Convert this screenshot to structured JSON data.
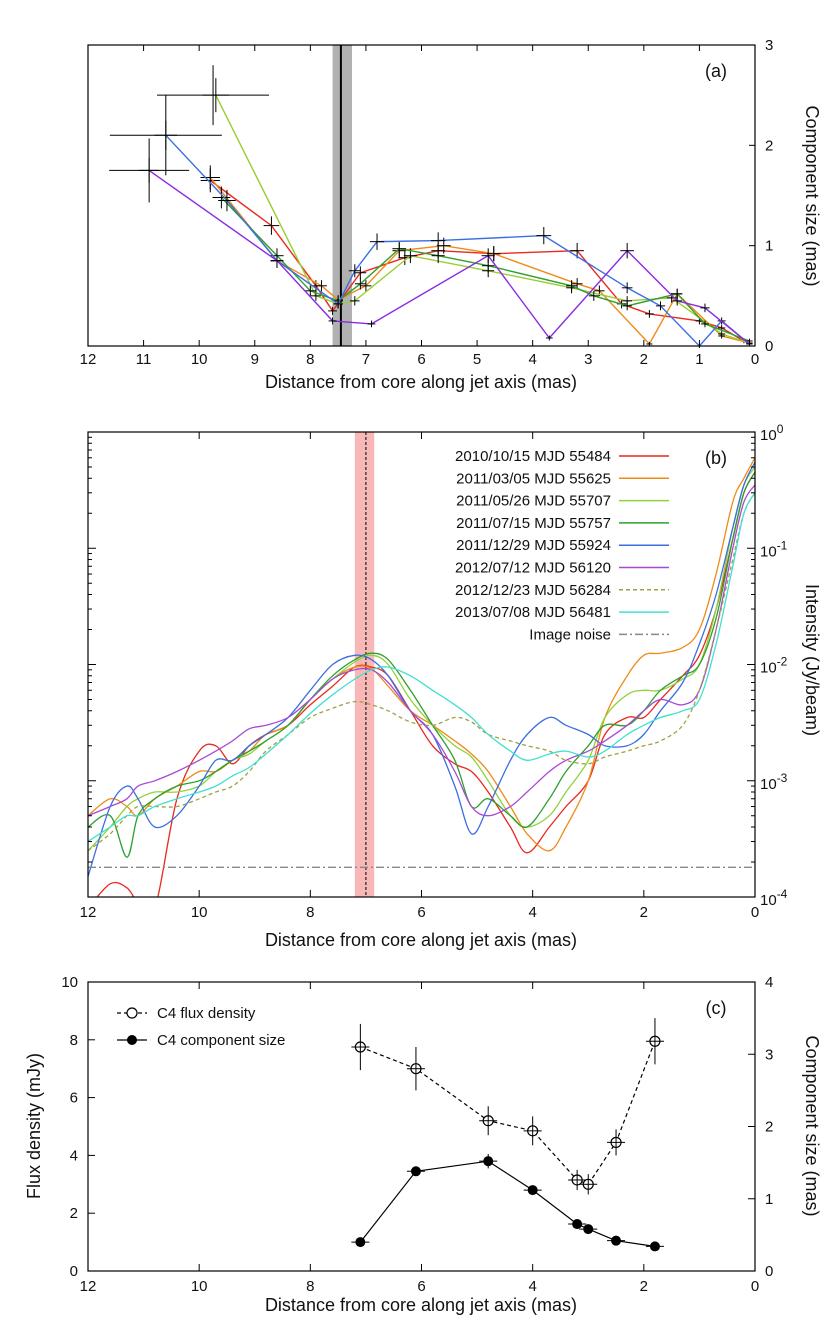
{
  "chart_data": [
    {
      "panel": "(a)",
      "type": "line",
      "xlabel": "Distance from core along jet axis (mas)",
      "ylabel": "Component size (mas)",
      "xlim": [
        12,
        0
      ],
      "ylim": [
        0,
        3
      ],
      "x_ticks": [
        12,
        11,
        10,
        9,
        8,
        7,
        6,
        5,
        4,
        3,
        2,
        1,
        0
      ],
      "y_ticks": [
        0,
        1,
        2,
        3
      ],
      "shaded_band": {
        "x_from": 7.6,
        "x_to": 7.25,
        "center_line": 7.45,
        "color": "#a9a9a9"
      },
      "series": [
        {
          "name": "2010/10/15",
          "color": "#e8291c",
          "x": [
            9.8,
            8.7,
            7.9,
            7.6,
            7.1,
            6.3,
            5.7,
            4.7,
            3.2,
            2.4,
            1.9,
            1.0,
            0.6,
            0.2
          ],
          "y": [
            1.65,
            1.2,
            0.6,
            0.35,
            0.73,
            0.88,
            0.95,
            0.92,
            0.95,
            0.42,
            0.32,
            0.25,
            0.18,
            0.05
          ]
        },
        {
          "name": "2011/03/05",
          "color": "#f08a18",
          "x": [
            9.8,
            8.6,
            7.8,
            7.5,
            7.0,
            6.4,
            5.6,
            4.7,
            3.2,
            2.8,
            1.9,
            1.4,
            0.6,
            0.1
          ],
          "y": [
            1.68,
            0.85,
            0.6,
            0.46,
            0.6,
            0.95,
            1.0,
            0.92,
            0.62,
            0.55,
            0.02,
            0.52,
            0.1,
            0.03
          ]
        },
        {
          "name": "2011/05/26",
          "color": "#9acd32",
          "x": [
            9.7,
            7.9,
            7.5,
            7.2,
            6.2,
            4.8,
            3.3,
            2.3,
            1.5,
            0.6,
            0.1
          ],
          "y": [
            2.5,
            0.5,
            0.42,
            0.45,
            0.9,
            0.75,
            0.58,
            0.45,
            0.48,
            0.12,
            0.03
          ]
        },
        {
          "name": "2011/07/15",
          "color": "#2ea02e",
          "x": [
            9.6,
            8.6,
            8.0,
            7.5,
            7.1,
            6.4,
            5.7,
            4.8,
            3.3,
            2.9,
            2.3,
            1.4,
            0.9,
            0.1
          ],
          "y": [
            1.48,
            0.9,
            0.55,
            0.45,
            0.62,
            0.97,
            0.9,
            0.8,
            0.6,
            0.5,
            0.4,
            0.52,
            0.22,
            0.05
          ]
        },
        {
          "name": "2011/12/29",
          "color": "#3b6fe0",
          "x": [
            10.6,
            9.5,
            8.6,
            7.5,
            7.2,
            6.8,
            5.7,
            3.8,
            2.3,
            1.7,
            1.0,
            0.6,
            0.1
          ],
          "y": [
            2.1,
            1.45,
            0.85,
            0.42,
            0.75,
            1.04,
            1.05,
            1.1,
            0.58,
            0.4,
            0.0,
            0.25,
            0.02
          ]
        },
        {
          "name": "2012/07/12",
          "color": "#8a2be2",
          "x": [
            10.9,
            8.6,
            7.6,
            6.9,
            4.8,
            3.7,
            2.3,
            1.4,
            0.9,
            0.1
          ],
          "y": [
            1.75,
            0.85,
            0.25,
            0.22,
            0.9,
            0.08,
            0.95,
            0.45,
            0.38,
            0.02
          ]
        }
      ]
    },
    {
      "panel": "(b)",
      "type": "line",
      "xlabel": "Distance from core along jet axis (mas)",
      "ylabel": "Intensity   (Jy/beam)",
      "xlim": [
        12,
        0
      ],
      "y_scale": "log",
      "ylim": [
        0.0001,
        1
      ],
      "x_ticks": [
        12,
        10,
        8,
        6,
        4,
        2,
        0
      ],
      "y_ticks": [
        "10^-4",
        "10^-3",
        "10^-2",
        "10^-1",
        "10^0"
      ],
      "y_tick_values": [
        0.0001,
        0.001,
        0.01,
        0.1,
        1
      ],
      "shaded_band": {
        "x_from": 7.2,
        "x_to": 6.85,
        "center_line": 7.0,
        "color": "#f5a0a0"
      },
      "image_noise_level": 0.00018,
      "x": [
        12,
        11.6,
        11.3,
        11.1,
        10.8,
        10.4,
        10,
        9.7,
        9.4,
        9.1,
        8.8,
        8.4,
        8,
        7.6,
        7.2,
        6.9,
        6.6,
        6.2,
        5.8,
        5.4,
        5.1,
        4.8,
        4.4,
        4.1,
        3.7,
        3.4,
        3,
        2.7,
        2.3,
        2,
        1.7,
        1.3,
        1,
        0.7,
        0.4,
        0.2,
        0
      ],
      "series": [
        {
          "name": "2010/10/15  MJD 55484",
          "color": "#e8291c",
          "dash": "",
          "values": [
            8e-05,
            0.00013,
            0.00012,
            9e-05,
            8e-05,
            0.0007,
            0.0018,
            0.002,
            0.0014,
            0.002,
            0.0025,
            0.003,
            0.0045,
            0.0065,
            0.0095,
            0.0095,
            0.008,
            0.004,
            0.002,
            0.0014,
            0.0012,
            0.0008,
            0.0004,
            0.00024,
            0.0004,
            0.0006,
            0.001,
            0.0025,
            0.0035,
            0.0035,
            0.005,
            0.008,
            0.012,
            0.03,
            0.12,
            0.3,
            0.45
          ]
        },
        {
          "name": "2011/03/05  MJD 55625",
          "color": "#f08a18",
          "dash": "",
          "values": [
            0.0005,
            0.0007,
            0.0006,
            0.0005,
            0.0007,
            0.0009,
            0.0012,
            0.0012,
            0.0015,
            0.0018,
            0.0025,
            0.003,
            0.005,
            0.0075,
            0.0095,
            0.0092,
            0.0065,
            0.004,
            0.003,
            0.0022,
            0.0017,
            0.0012,
            0.0006,
            0.00035,
            0.00025,
            0.0004,
            0.001,
            0.0035,
            0.008,
            0.012,
            0.0125,
            0.014,
            0.02,
            0.06,
            0.25,
            0.4,
            0.6
          ]
        },
        {
          "name": "2011/05/26  MJD 55707",
          "color": "#8fd23c",
          "dash": "",
          "values": [
            0.00025,
            0.0004,
            0.0006,
            0.0007,
            0.0008,
            0.0008,
            0.0009,
            0.0012,
            0.0015,
            0.0017,
            0.0022,
            0.003,
            0.005,
            0.0075,
            0.0105,
            0.012,
            0.01,
            0.005,
            0.003,
            0.002,
            0.0016,
            0.001,
            0.0005,
            0.0004,
            0.0005,
            0.0008,
            0.0015,
            0.0035,
            0.0055,
            0.006,
            0.006,
            0.0075,
            0.01,
            0.03,
            0.15,
            0.35,
            0.5
          ]
        },
        {
          "name": "2011/07/15  MJD 55757",
          "color": "#2ea02e",
          "dash": "",
          "values": [
            0.0004,
            0.0005,
            0.00022,
            0.0005,
            0.0007,
            0.0009,
            0.001,
            0.0012,
            0.0015,
            0.0018,
            0.0022,
            0.003,
            0.005,
            0.008,
            0.011,
            0.0125,
            0.011,
            0.006,
            0.003,
            0.0015,
            0.0006,
            0.0007,
            0.0005,
            0.0004,
            0.0007,
            0.0012,
            0.002,
            0.003,
            0.003,
            0.004,
            0.006,
            0.008,
            0.01,
            0.025,
            0.12,
            0.3,
            0.45
          ]
        },
        {
          "name": "2011/12/29  MJD 55924",
          "color": "#3b6fe0",
          "dash": "",
          "values": [
            0.00015,
            0.0006,
            0.0009,
            0.0007,
            0.0004,
            0.0005,
            0.0009,
            0.0015,
            0.0015,
            0.002,
            0.0025,
            0.0035,
            0.006,
            0.01,
            0.012,
            0.011,
            0.008,
            0.004,
            0.0025,
            0.0009,
            0.00035,
            0.0006,
            0.0015,
            0.0025,
            0.0035,
            0.003,
            0.0025,
            0.002,
            0.002,
            0.0025,
            0.004,
            0.007,
            0.015,
            0.04,
            0.15,
            0.35,
            0.55
          ]
        },
        {
          "name": "2012/07/12  MJD 56120",
          "color": "#a64ad6",
          "dash": "",
          "values": [
            0.0005,
            0.0006,
            0.0007,
            0.0009,
            0.001,
            0.0012,
            0.0015,
            0.0018,
            0.0022,
            0.0028,
            0.003,
            0.0035,
            0.005,
            0.0075,
            0.009,
            0.009,
            0.007,
            0.004,
            0.0025,
            0.0012,
            0.0006,
            0.0005,
            0.0006,
            0.0008,
            0.0012,
            0.0015,
            0.0018,
            0.0022,
            0.003,
            0.004,
            0.005,
            0.0045,
            0.006,
            0.02,
            0.1,
            0.25,
            0.35
          ]
        },
        {
          "name": "2012/12/23  MJD 56284",
          "color": "#a0a040",
          "dash": "4,3",
          "values": [
            0.00025,
            0.00035,
            0.0005,
            0.0006,
            0.0006,
            0.0006,
            0.0007,
            0.0008,
            0.0009,
            0.0012,
            0.0018,
            0.0025,
            0.0035,
            0.0042,
            0.0048,
            0.0045,
            0.004,
            0.0032,
            0.003,
            0.0035,
            0.0032,
            0.0025,
            0.0022,
            0.002,
            0.0018,
            0.0015,
            0.0014,
            0.0016,
            0.0018,
            0.002,
            0.0022,
            0.003,
            0.006,
            0.02,
            0.08,
            0.2,
            0.3
          ]
        },
        {
          "name": "2013/07/08  MJD 56481",
          "color": "#40e0d0",
          "dash": "",
          "values": [
            0.0003,
            0.0004,
            0.0005,
            0.0005,
            0.0006,
            0.0007,
            0.0008,
            0.0009,
            0.0011,
            0.0013,
            0.0017,
            0.0025,
            0.0038,
            0.0055,
            0.0075,
            0.009,
            0.0095,
            0.008,
            0.006,
            0.0045,
            0.0035,
            0.0025,
            0.0018,
            0.0015,
            0.0017,
            0.0018,
            0.0016,
            0.0018,
            0.0025,
            0.003,
            0.0035,
            0.004,
            0.005,
            0.015,
            0.07,
            0.2,
            0.3
          ]
        },
        {
          "name": "Image noise",
          "color": "#888888",
          "dash": "8,3,2,3",
          "constant": 0.00018
        }
      ]
    },
    {
      "panel": "(c)",
      "type": "scatter",
      "xlabel": "Distance from core along jet axis (mas)",
      "ylabel": "Flux density (mJy)",
      "y2label": "Component size (mas)",
      "xlim": [
        12,
        0
      ],
      "ylim": [
        0,
        10
      ],
      "y2lim": [
        0,
        4
      ],
      "x_ticks": [
        12,
        10,
        8,
        6,
        4,
        2,
        0
      ],
      "y_ticks": [
        0,
        2,
        4,
        6,
        8,
        10
      ],
      "y2_ticks": [
        0,
        1,
        2,
        3,
        4
      ],
      "series": [
        {
          "name": "C4 flux density",
          "axis": "left",
          "marker": "open-circle",
          "line": "dashed",
          "x": [
            7.1,
            6.1,
            4.8,
            4.0,
            3.2,
            3.0,
            2.5,
            1.8
          ],
          "y": [
            7.75,
            7.0,
            5.2,
            4.85,
            3.15,
            3.0,
            4.45,
            7.95
          ],
          "yerr": [
            0.8,
            0.75,
            0.5,
            0.5,
            0.35,
            0.35,
            0.45,
            0.8
          ]
        },
        {
          "name": "C4 component size",
          "axis": "right",
          "marker": "filled-circle",
          "line": "solid",
          "x": [
            7.1,
            6.1,
            4.8,
            4.0,
            3.2,
            3.0,
            2.5,
            1.8
          ],
          "y": [
            0.4,
            1.38,
            1.52,
            1.12,
            0.65,
            0.58,
            0.42,
            0.34
          ],
          "yerr": [
            0.0,
            0.05,
            0.1,
            0.05,
            0.0,
            0.0,
            0.0,
            0.0
          ]
        }
      ]
    }
  ]
}
